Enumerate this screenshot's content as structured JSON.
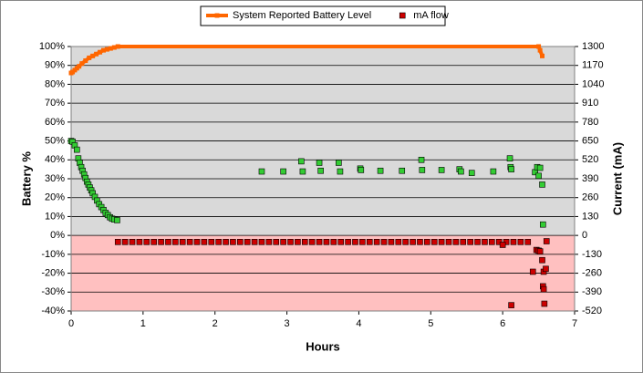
{
  "chart_data": {
    "type": "line",
    "xlabel": "Hours",
    "ylabel": "Battery %",
    "y2label": "Current (mA)",
    "xlim": [
      0,
      7
    ],
    "xticks": [
      0,
      1,
      2,
      3,
      4,
      5,
      6,
      7
    ],
    "ylim": [
      -40,
      100
    ],
    "yticks": [
      {
        "value": -40,
        "label": "-40%"
      },
      {
        "value": -30,
        "label": "-30%"
      },
      {
        "value": -20,
        "label": "-20%"
      },
      {
        "value": -10,
        "label": "-10%"
      },
      {
        "value": 0,
        "label": "0%"
      },
      {
        "value": 10,
        "label": "10%"
      },
      {
        "value": 20,
        "label": "20%"
      },
      {
        "value": 30,
        "label": "30%"
      },
      {
        "value": 40,
        "label": "40%"
      },
      {
        "value": 50,
        "label": "50%"
      },
      {
        "value": 60,
        "label": "60%"
      },
      {
        "value": 70,
        "label": "70%"
      },
      {
        "value": 80,
        "label": "80%"
      },
      {
        "value": 90,
        "label": "90%"
      },
      {
        "value": 100,
        "label": "100%"
      }
    ],
    "y2lim": [
      -520,
      1300
    ],
    "y2ticks": [
      -520,
      -390,
      -260,
      -130,
      0,
      130,
      260,
      390,
      520,
      650,
      780,
      910,
      1040,
      1170,
      1300
    ],
    "grid": true,
    "legend": "top",
    "series": [
      {
        "name": "System Reported Battery Level",
        "color": "#ff6600",
        "type": "line",
        "x": [
          0,
          0.02,
          0.05,
          0.08,
          0.11,
          0.15,
          0.2,
          0.25,
          0.3,
          0.35,
          0.4,
          0.45,
          0.5,
          0.55,
          0.6,
          0.65,
          6.5,
          6.52,
          6.55
        ],
        "values": [
          86,
          86.5,
          87.5,
          88.5,
          89.5,
          91,
          92.5,
          94,
          95,
          96,
          97,
          98,
          98.5,
          99,
          99.5,
          100,
          100,
          98,
          95
        ]
      },
      {
        "name": "mA flow",
        "color": "#cc0000",
        "positive_color": "#33cc33",
        "type": "scatter",
        "axis": "y2",
        "x": [
          0,
          0.02,
          0.05,
          0.08,
          0.1,
          0.12,
          0.14,
          0.16,
          0.18,
          0.2,
          0.22,
          0.24,
          0.26,
          0.28,
          0.3,
          0.33,
          0.36,
          0.39,
          0.42,
          0.45,
          0.48,
          0.51,
          0.54,
          0.57,
          0.6,
          0.64,
          2.65,
          2.95,
          3.2,
          3.22,
          3.45,
          3.47,
          3.72,
          3.74,
          4.02,
          4.03,
          4.3,
          4.6,
          4.87,
          4.88,
          5.15,
          5.4,
          5.42,
          5.57,
          5.87,
          6.1,
          6.11,
          6.12,
          6.45,
          6.48,
          6.5,
          6.52,
          6.55,
          6.56,
          0.65,
          0.75,
          0.85,
          0.95,
          1.05,
          1.15,
          1.25,
          1.35,
          1.45,
          1.55,
          1.65,
          1.75,
          1.85,
          1.95,
          2.05,
          2.15,
          2.25,
          2.35,
          2.45,
          2.55,
          2.65,
          2.75,
          2.85,
          2.95,
          3.05,
          3.15,
          3.25,
          3.35,
          3.45,
          3.55,
          3.65,
          3.75,
          3.85,
          3.95,
          4.05,
          4.15,
          4.25,
          4.35,
          4.45,
          4.55,
          4.65,
          4.75,
          4.85,
          4.95,
          5.05,
          5.15,
          5.25,
          5.35,
          5.45,
          5.55,
          5.65,
          5.75,
          5.85,
          5.95,
          6.05,
          6.15,
          6.25,
          6.35,
          6.0,
          6.12,
          6.42,
          6.47,
          6.5,
          6.52,
          6.55,
          6.57,
          6.56,
          6.57,
          6.58,
          6.6,
          6.61
        ],
        "values": [
          650,
          645,
          620,
          590,
          530,
          500,
          470,
          445,
          420,
          395,
          370,
          350,
          330,
          310,
          290,
          265,
          240,
          215,
          195,
          175,
          155,
          140,
          125,
          115,
          110,
          105,
          440,
          440,
          510,
          440,
          500,
          445,
          500,
          440,
          460,
          450,
          445,
          445,
          520,
          450,
          450,
          455,
          440,
          430,
          440,
          530,
          470,
          455,
          435,
          470,
          410,
          465,
          350,
          75,
          -45,
          -45,
          -45,
          -45,
          -45,
          -45,
          -45,
          -45,
          -45,
          -45,
          -45,
          -45,
          -45,
          -45,
          -45,
          -45,
          -45,
          -45,
          -45,
          -45,
          -45,
          -45,
          -45,
          -45,
          -45,
          -45,
          -45,
          -45,
          -45,
          -45,
          -45,
          -45,
          -45,
          -45,
          -45,
          -45,
          -45,
          -45,
          -45,
          -45,
          -45,
          -45,
          -45,
          -45,
          -45,
          -45,
          -45,
          -45,
          -45,
          -45,
          -45,
          -45,
          -45,
          -45,
          -45,
          -45,
          -45,
          -45,
          -65,
          -480,
          -250,
          -100,
          -105,
          -110,
          -170,
          -250,
          -350,
          -370,
          -470,
          -230,
          -40
        ]
      }
    ]
  }
}
